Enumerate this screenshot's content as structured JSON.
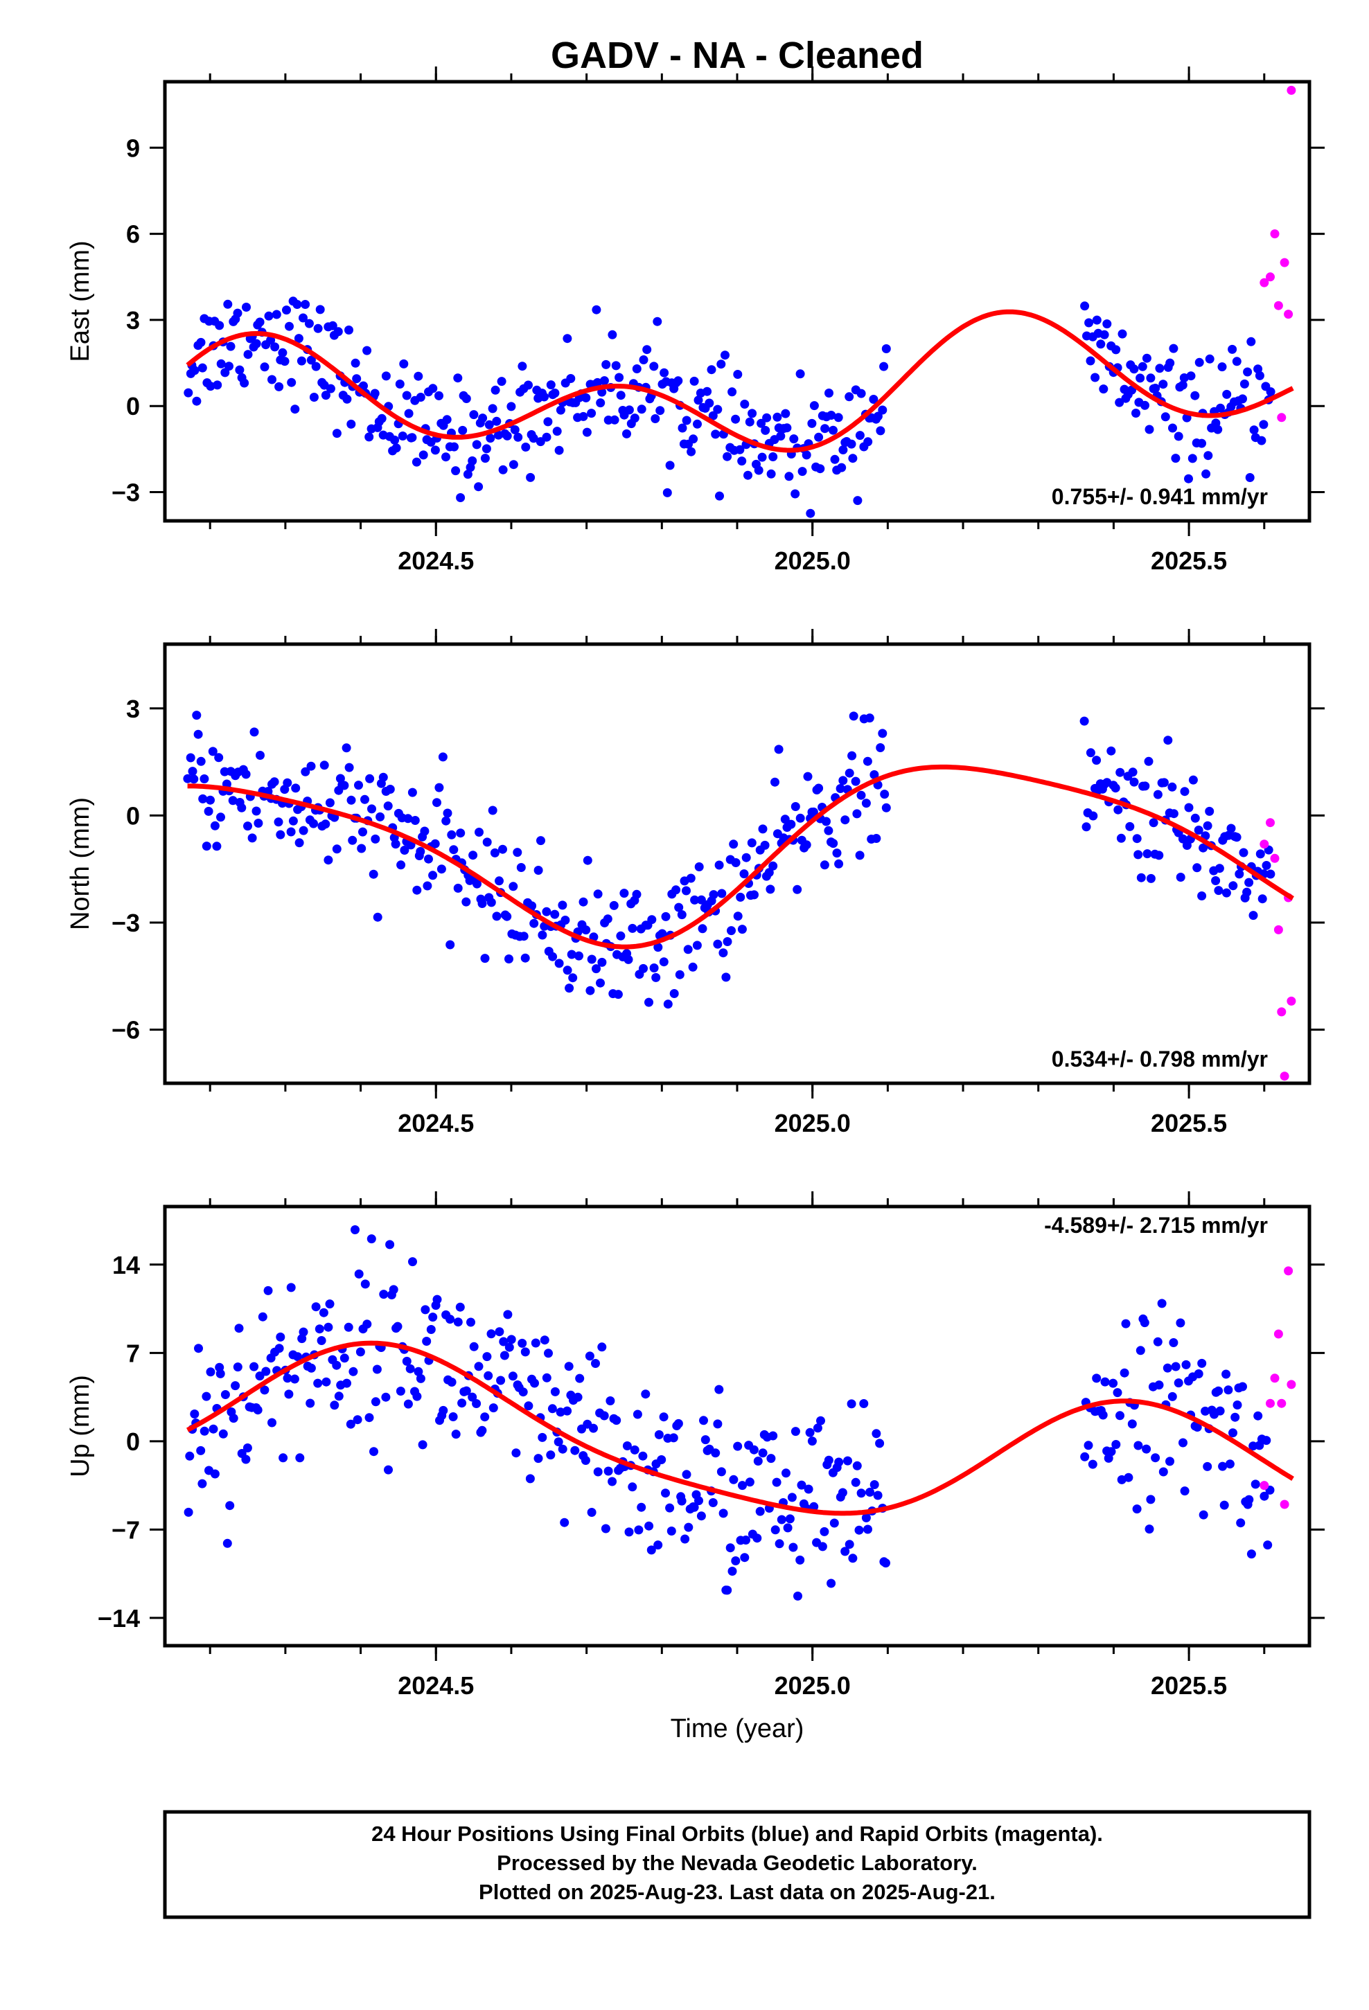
{
  "title": "GADV  - NA - Cleaned",
  "x_axis_label": "Time (year)",
  "footer": {
    "line1": "24 Hour Positions Using Final Orbits (blue) and Rapid Orbits (magenta).",
    "line2": "Processed by the Nevada Geodetic Laboratory.",
    "line3": "Plotted on 2025-Aug-23. Last data on 2025-Aug-21."
  },
  "colors": {
    "final": "#0000ff",
    "rapid": "#ff00ff",
    "model": "#ff0000",
    "frame": "#000000"
  },
  "chart_data": [
    {
      "type": "scatter",
      "ylabel": "East (mm)",
      "rate_text": "0.755+/- 0.941 mm/yr",
      "xlim": [
        2024.14,
        2025.66
      ],
      "ylim": [
        -4.0,
        11.3
      ],
      "xticks": [
        2024.5,
        2025.0,
        2025.5
      ],
      "xtick_labels": [
        "2024.5",
        "2025.0",
        "2025.5"
      ],
      "yticks": [
        -3,
        0,
        3,
        6,
        9
      ],
      "ytick_labels": [
        "−3",
        "0",
        "3",
        "6",
        "9"
      ],
      "model": {
        "mean": 0.4,
        "trend": 0.755,
        "t0": 2024.9,
        "ann_a": -0.4,
        "ann_b": 1.1,
        "semi_a": -1.5,
        "semi_b": 0.0
      },
      "final_scatter_sd": 0.95,
      "final_ranges": [
        [
          2024.17,
          2025.1
        ],
        [
          2025.36,
          2025.61
        ]
      ],
      "rapid_x": [
        2025.6,
        2025.608,
        2025.614,
        2025.619,
        2025.623,
        2025.627,
        2025.632,
        2025.636
      ],
      "rapid_y": [
        4.3,
        4.5,
        6.0,
        3.5,
        -0.4,
        5.0,
        3.2,
        11.0
      ],
      "final_points": 430
    },
    {
      "type": "scatter",
      "ylabel": "North (mm)",
      "rate_text": "0.534+/- 0.798 mm/yr",
      "xlim": [
        2024.14,
        2025.66
      ],
      "ylim": [
        -7.5,
        4.8
      ],
      "xticks": [
        2024.5,
        2025.0,
        2025.5
      ],
      "xtick_labels": [
        "2024.5",
        "2025.0",
        "2025.5"
      ],
      "yticks": [
        -6,
        -3,
        0,
        3
      ],
      "ytick_labels": [
        "−6",
        "−3",
        "0",
        "3"
      ],
      "model": {
        "mean": -0.9,
        "trend": 0.534,
        "t0": 2024.9,
        "ann_a": 0.3,
        "ann_b": 2.3,
        "semi_a": 0.4,
        "semi_b": 0.2
      },
      "final_scatter_sd": 0.9,
      "final_ranges": [
        [
          2024.17,
          2025.1
        ],
        [
          2025.36,
          2025.61
        ]
      ],
      "rapid_x": [
        2025.6,
        2025.608,
        2025.614,
        2025.619,
        2025.623,
        2025.627,
        2025.632,
        2025.636
      ],
      "rapid_y": [
        -0.8,
        -0.2,
        -1.2,
        -3.2,
        -5.5,
        -7.3,
        -2.3,
        -5.2
      ],
      "final_points": 430
    },
    {
      "type": "scatter",
      "ylabel": "Up (mm)",
      "rate_text": "-4.589+/- 2.715 mm/yr",
      "xlim": [
        2024.14,
        2025.66
      ],
      "ylim": [
        -16.2,
        18.6
      ],
      "xticks": [
        2024.5,
        2025.0,
        2025.5
      ],
      "xtick_labels": [
        "2024.5",
        "2025.0",
        "2025.5"
      ],
      "yticks": [
        -14,
        -7,
        0,
        7,
        14
      ],
      "ytick_labels": [
        "−14",
        "−7",
        "0",
        "7",
        "14"
      ],
      "model": {
        "mean": -0.5,
        "trend": -4.589,
        "t0": 2024.9,
        "ann_a": -4.9,
        "ann_b": 1.6,
        "semi_a": 0.3,
        "semi_b": -1.0
      },
      "final_scatter_sd": 3.8,
      "final_ranges": [
        [
          2024.17,
          2025.1
        ],
        [
          2025.36,
          2025.61
        ]
      ],
      "rapid_x": [
        2025.6,
        2025.608,
        2025.614,
        2025.619,
        2025.623,
        2025.627,
        2025.632,
        2025.636
      ],
      "rapid_y": [
        -3.5,
        3.0,
        5.0,
        8.5,
        3.0,
        -5.0,
        13.5,
        4.5
      ],
      "final_points": 430
    }
  ]
}
